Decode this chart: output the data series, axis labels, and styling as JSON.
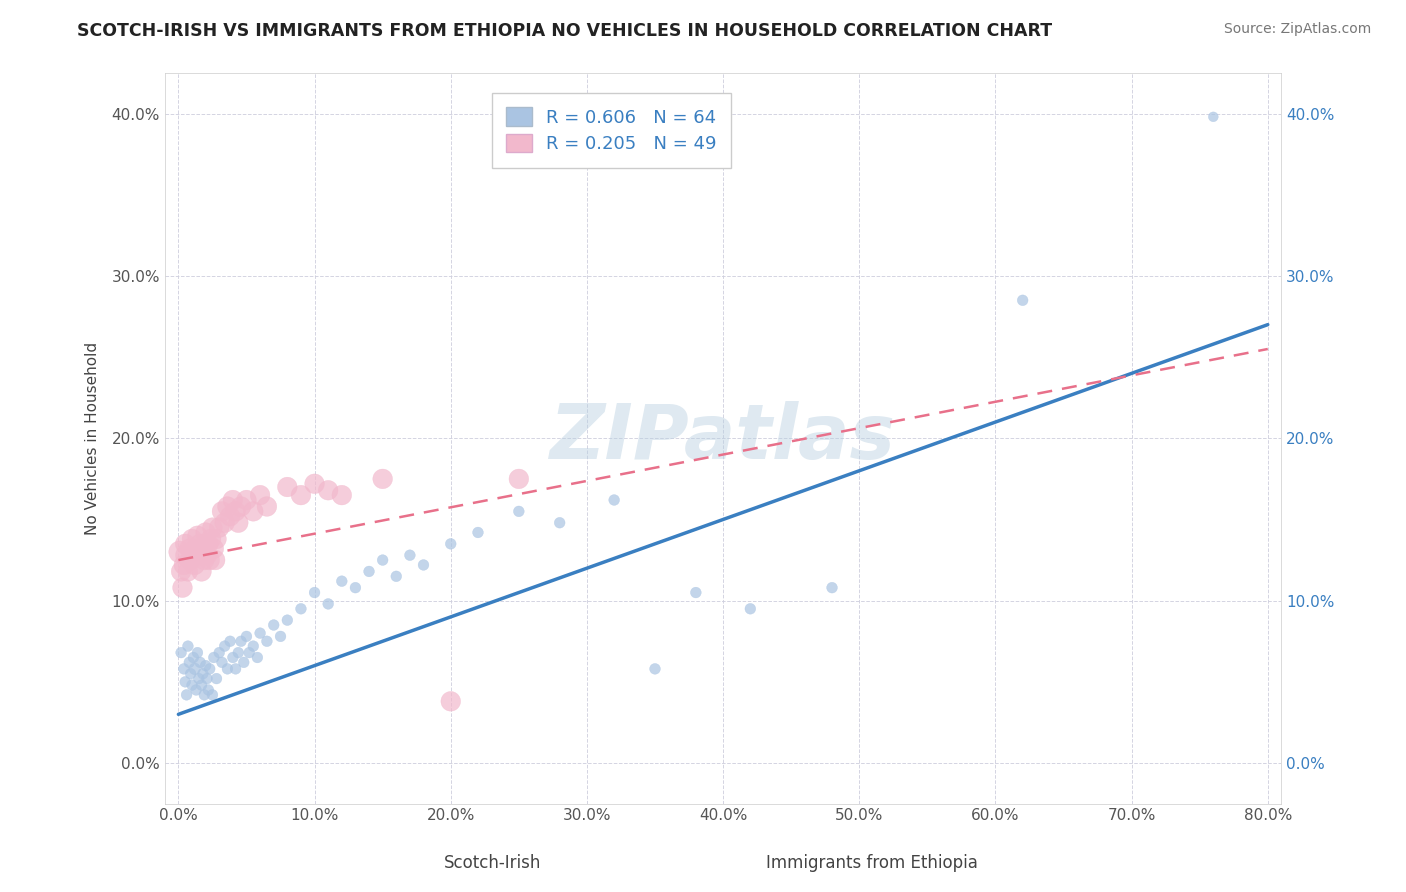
{
  "title": "SCOTCH-IRISH VS IMMIGRANTS FROM ETHIOPIA NO VEHICLES IN HOUSEHOLD CORRELATION CHART",
  "source": "Source: ZipAtlas.com",
  "xlabel_scotch": "Scotch-Irish",
  "xlabel_ethiopia": "Immigrants from Ethiopia",
  "ylabel": "No Vehicles in Household",
  "watermark": "ZIPatlas",
  "legend_blue_R": "R = 0.606",
  "legend_blue_N": "N = 64",
  "legend_pink_R": "R = 0.205",
  "legend_pink_N": "N = 49",
  "blue_color": "#aac4e2",
  "pink_color": "#f2b8cc",
  "blue_line_color": "#3a7fc1",
  "pink_line_color": "#e8708a",
  "grid_color": "#d0d0de",
  "background_color": "#ffffff",
  "xlim": [
    -0.01,
    0.81
  ],
  "ylim": [
    -0.025,
    0.425
  ],
  "blue_scatter": [
    [
      0.002,
      0.068
    ],
    [
      0.004,
      0.058
    ],
    [
      0.005,
      0.05
    ],
    [
      0.006,
      0.042
    ],
    [
      0.007,
      0.072
    ],
    [
      0.008,
      0.062
    ],
    [
      0.009,
      0.055
    ],
    [
      0.01,
      0.048
    ],
    [
      0.011,
      0.065
    ],
    [
      0.012,
      0.058
    ],
    [
      0.013,
      0.045
    ],
    [
      0.014,
      0.068
    ],
    [
      0.015,
      0.052
    ],
    [
      0.016,
      0.062
    ],
    [
      0.017,
      0.048
    ],
    [
      0.018,
      0.055
    ],
    [
      0.019,
      0.042
    ],
    [
      0.02,
      0.06
    ],
    [
      0.021,
      0.052
    ],
    [
      0.022,
      0.045
    ],
    [
      0.023,
      0.058
    ],
    [
      0.025,
      0.042
    ],
    [
      0.026,
      0.065
    ],
    [
      0.028,
      0.052
    ],
    [
      0.03,
      0.068
    ],
    [
      0.032,
      0.062
    ],
    [
      0.034,
      0.072
    ],
    [
      0.036,
      0.058
    ],
    [
      0.038,
      0.075
    ],
    [
      0.04,
      0.065
    ],
    [
      0.042,
      0.058
    ],
    [
      0.044,
      0.068
    ],
    [
      0.046,
      0.075
    ],
    [
      0.048,
      0.062
    ],
    [
      0.05,
      0.078
    ],
    [
      0.052,
      0.068
    ],
    [
      0.055,
      0.072
    ],
    [
      0.058,
      0.065
    ],
    [
      0.06,
      0.08
    ],
    [
      0.065,
      0.075
    ],
    [
      0.07,
      0.085
    ],
    [
      0.075,
      0.078
    ],
    [
      0.08,
      0.088
    ],
    [
      0.09,
      0.095
    ],
    [
      0.1,
      0.105
    ],
    [
      0.11,
      0.098
    ],
    [
      0.12,
      0.112
    ],
    [
      0.13,
      0.108
    ],
    [
      0.14,
      0.118
    ],
    [
      0.15,
      0.125
    ],
    [
      0.16,
      0.115
    ],
    [
      0.17,
      0.128
    ],
    [
      0.18,
      0.122
    ],
    [
      0.2,
      0.135
    ],
    [
      0.22,
      0.142
    ],
    [
      0.25,
      0.155
    ],
    [
      0.28,
      0.148
    ],
    [
      0.32,
      0.162
    ],
    [
      0.35,
      0.058
    ],
    [
      0.38,
      0.105
    ],
    [
      0.42,
      0.095
    ],
    [
      0.48,
      0.108
    ],
    [
      0.62,
      0.285
    ],
    [
      0.76,
      0.398
    ]
  ],
  "blue_sizes": [
    60,
    60,
    60,
    60,
    60,
    60,
    60,
    60,
    60,
    70,
    60,
    60,
    60,
    60,
    60,
    60,
    60,
    60,
    60,
    60,
    60,
    60,
    60,
    60,
    60,
    60,
    60,
    60,
    60,
    60,
    60,
    60,
    60,
    60,
    60,
    60,
    60,
    60,
    60,
    60,
    60,
    60,
    60,
    60,
    60,
    60,
    60,
    60,
    60,
    60,
    60,
    60,
    60,
    60,
    60,
    60,
    60,
    60,
    60,
    60,
    60,
    60,
    60,
    50
  ],
  "pink_scatter": [
    [
      0.001,
      0.13
    ],
    [
      0.002,
      0.118
    ],
    [
      0.003,
      0.108
    ],
    [
      0.004,
      0.122
    ],
    [
      0.005,
      0.135
    ],
    [
      0.006,
      0.128
    ],
    [
      0.007,
      0.118
    ],
    [
      0.008,
      0.132
    ],
    [
      0.009,
      0.125
    ],
    [
      0.01,
      0.138
    ],
    [
      0.011,
      0.128
    ],
    [
      0.012,
      0.122
    ],
    [
      0.013,
      0.132
    ],
    [
      0.014,
      0.14
    ],
    [
      0.015,
      0.128
    ],
    [
      0.016,
      0.135
    ],
    [
      0.017,
      0.118
    ],
    [
      0.018,
      0.132
    ],
    [
      0.019,
      0.125
    ],
    [
      0.02,
      0.142
    ],
    [
      0.021,
      0.128
    ],
    [
      0.022,
      0.135
    ],
    [
      0.023,
      0.125
    ],
    [
      0.024,
      0.138
    ],
    [
      0.025,
      0.145
    ],
    [
      0.026,
      0.132
    ],
    [
      0.027,
      0.125
    ],
    [
      0.028,
      0.138
    ],
    [
      0.03,
      0.145
    ],
    [
      0.032,
      0.155
    ],
    [
      0.034,
      0.148
    ],
    [
      0.036,
      0.158
    ],
    [
      0.038,
      0.152
    ],
    [
      0.04,
      0.162
    ],
    [
      0.042,
      0.155
    ],
    [
      0.044,
      0.148
    ],
    [
      0.046,
      0.158
    ],
    [
      0.05,
      0.162
    ],
    [
      0.055,
      0.155
    ],
    [
      0.06,
      0.165
    ],
    [
      0.065,
      0.158
    ],
    [
      0.08,
      0.17
    ],
    [
      0.09,
      0.165
    ],
    [
      0.1,
      0.172
    ],
    [
      0.11,
      0.168
    ],
    [
      0.12,
      0.165
    ],
    [
      0.15,
      0.175
    ],
    [
      0.2,
      0.038
    ],
    [
      0.25,
      0.175
    ]
  ],
  "pink_sizes": [
    250,
    200,
    200,
    200,
    200,
    250,
    200,
    200,
    200,
    200,
    200,
    200,
    200,
    200,
    200,
    200,
    200,
    200,
    200,
    200,
    200,
    200,
    200,
    200,
    200,
    200,
    200,
    200,
    200,
    200,
    200,
    200,
    200,
    200,
    200,
    200,
    200,
    200,
    200,
    200,
    200,
    200,
    200,
    200,
    200,
    200,
    200,
    200,
    200
  ],
  "blue_line": {
    "x0": 0.0,
    "x1": 0.8,
    "y0": 0.03,
    "y1": 0.27
  },
  "pink_line": {
    "x0": 0.0,
    "x1": 0.8,
    "y0": 0.125,
    "y1": 0.255
  }
}
